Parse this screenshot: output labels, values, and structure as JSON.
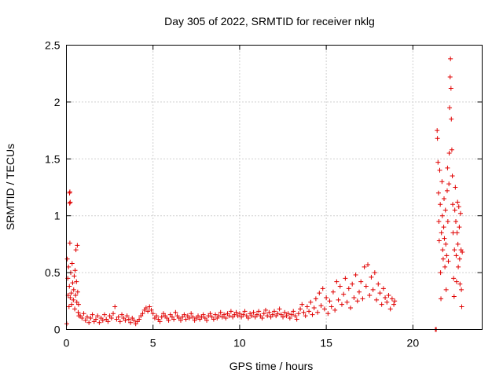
{
  "chart_data": {
    "type": "scatter",
    "title": "Day 305 of 2022, SRMTID for receiver nklg",
    "xlabel": "GPS time / hours",
    "ylabel": "SRMTID / TECUs",
    "xlim": [
      0,
      24
    ],
    "ylim": [
      0,
      2.5
    ],
    "xticks": [
      0,
      5,
      10,
      15,
      20
    ],
    "yticks": [
      0,
      0.5,
      1,
      1.5,
      2,
      2.5
    ],
    "xtick_labels": [
      "0",
      "5",
      "10",
      "15",
      "20"
    ],
    "ytick_labels": [
      "0",
      "0.5",
      "1",
      "1.5",
      "2",
      "2.5"
    ],
    "grid": true,
    "marker": "plus",
    "color": "#e00000",
    "series": [
      {
        "name": "nklg",
        "points": [
          [
            0.02,
            0.05
          ],
          [
            0.05,
            0.62
          ],
          [
            0.08,
            0.45
          ],
          [
            0.1,
            0.3
          ],
          [
            0.12,
            0.55
          ],
          [
            0.15,
            0.2
          ],
          [
            0.17,
            0.38
          ],
          [
            0.2,
            0.76
          ],
          [
            0.22,
            0.28
          ],
          [
            0.25,
            0.5
          ],
          [
            0.28,
            0.32
          ],
          [
            0.3,
            0.22
          ],
          [
            0.33,
            0.58
          ],
          [
            0.36,
            0.41
          ],
          [
            0.4,
            0.26
          ],
          [
            0.42,
            0.35
          ],
          [
            0.45,
            0.47
          ],
          [
            0.48,
            0.18
          ],
          [
            0.5,
            0.52
          ],
          [
            0.53,
            0.3
          ],
          [
            0.55,
            0.7
          ],
          [
            0.58,
            0.42
          ],
          [
            0.6,
            0.24
          ],
          [
            0.63,
            0.74
          ],
          [
            0.65,
            0.33
          ],
          [
            0.68,
            0.15
          ],
          [
            0.7,
            0.22
          ],
          [
            0.72,
            0.12
          ],
          [
            0.18,
            1.2
          ],
          [
            0.2,
            1.21
          ],
          [
            0.22,
            1.12
          ],
          [
            0.19,
            1.11
          ],
          [
            0.8,
            0.12
          ],
          [
            0.9,
            0.1
          ],
          [
            1.0,
            0.14
          ],
          [
            1.1,
            0.08
          ],
          [
            1.2,
            0.11
          ],
          [
            1.3,
            0.06
          ],
          [
            1.4,
            0.1
          ],
          [
            1.5,
            0.13
          ],
          [
            1.6,
            0.07
          ],
          [
            1.7,
            0.09
          ],
          [
            1.8,
            0.12
          ],
          [
            1.9,
            0.06
          ],
          [
            2.0,
            0.1
          ],
          [
            2.1,
            0.08
          ],
          [
            2.2,
            0.13
          ],
          [
            2.3,
            0.09
          ],
          [
            2.4,
            0.07
          ],
          [
            2.5,
            0.12
          ],
          [
            2.6,
            0.1
          ],
          [
            2.7,
            0.14
          ],
          [
            2.8,
            0.2
          ],
          [
            2.9,
            0.09
          ],
          [
            3.0,
            0.11
          ],
          [
            3.1,
            0.07
          ],
          [
            3.2,
            0.13
          ],
          [
            3.3,
            0.1
          ],
          [
            3.4,
            0.08
          ],
          [
            3.5,
            0.12
          ],
          [
            3.6,
            0.09
          ],
          [
            3.7,
            0.06
          ],
          [
            3.8,
            0.1
          ],
          [
            3.9,
            0.08
          ],
          [
            4.0,
            0.05
          ],
          [
            4.1,
            0.07
          ],
          [
            4.2,
            0.09
          ],
          [
            4.3,
            0.12
          ],
          [
            4.4,
            0.14
          ],
          [
            4.5,
            0.17
          ],
          [
            4.6,
            0.19
          ],
          [
            4.7,
            0.16
          ],
          [
            4.8,
            0.2
          ],
          [
            4.9,
            0.17
          ],
          [
            5.0,
            0.14
          ],
          [
            5.1,
            0.1
          ],
          [
            5.2,
            0.12
          ],
          [
            5.3,
            0.09
          ],
          [
            5.4,
            0.07
          ],
          [
            5.5,
            0.11
          ],
          [
            5.6,
            0.14
          ],
          [
            5.7,
            0.12
          ],
          [
            5.8,
            0.1
          ],
          [
            5.9,
            0.08
          ],
          [
            6.0,
            0.13
          ],
          [
            6.1,
            0.11
          ],
          [
            6.2,
            0.09
          ],
          [
            6.3,
            0.15
          ],
          [
            6.4,
            0.12
          ],
          [
            6.5,
            0.1
          ],
          [
            6.6,
            0.08
          ],
          [
            6.7,
            0.11
          ],
          [
            6.8,
            0.13
          ],
          [
            6.9,
            0.09
          ],
          [
            7.0,
            0.12
          ],
          [
            7.1,
            0.1
          ],
          [
            7.2,
            0.14
          ],
          [
            7.3,
            0.11
          ],
          [
            7.4,
            0.08
          ],
          [
            7.5,
            0.1
          ],
          [
            7.6,
            0.12
          ],
          [
            7.7,
            0.09
          ],
          [
            7.8,
            0.11
          ],
          [
            7.9,
            0.13
          ],
          [
            8.0,
            0.1
          ],
          [
            8.1,
            0.08
          ],
          [
            8.2,
            0.12
          ],
          [
            8.3,
            0.14
          ],
          [
            8.4,
            0.11
          ],
          [
            8.5,
            0.09
          ],
          [
            8.6,
            0.13
          ],
          [
            8.7,
            0.1
          ],
          [
            8.8,
            0.12
          ],
          [
            8.9,
            0.15
          ],
          [
            9.0,
            0.11
          ],
          [
            9.1,
            0.13
          ],
          [
            9.2,
            0.1
          ],
          [
            9.3,
            0.14
          ],
          [
            9.4,
            0.12
          ],
          [
            9.5,
            0.16
          ],
          [
            9.6,
            0.11
          ],
          [
            9.7,
            0.13
          ],
          [
            9.8,
            0.15
          ],
          [
            9.9,
            0.12
          ],
          [
            10.0,
            0.14
          ],
          [
            10.1,
            0.11
          ],
          [
            10.2,
            0.13
          ],
          [
            10.3,
            0.16
          ],
          [
            10.4,
            0.12
          ],
          [
            10.5,
            0.1
          ],
          [
            10.6,
            0.14
          ],
          [
            10.7,
            0.12
          ],
          [
            10.8,
            0.15
          ],
          [
            10.9,
            0.11
          ],
          [
            11.0,
            0.13
          ],
          [
            11.1,
            0.16
          ],
          [
            11.2,
            0.12
          ],
          [
            11.3,
            0.1
          ],
          [
            11.4,
            0.14
          ],
          [
            11.5,
            0.17
          ],
          [
            11.6,
            0.12
          ],
          [
            11.7,
            0.15
          ],
          [
            11.8,
            0.11
          ],
          [
            11.9,
            0.13
          ],
          [
            12.0,
            0.16
          ],
          [
            12.1,
            0.12
          ],
          [
            12.2,
            0.14
          ],
          [
            12.3,
            0.18
          ],
          [
            12.4,
            0.13
          ],
          [
            12.5,
            0.11
          ],
          [
            12.6,
            0.15
          ],
          [
            12.7,
            0.12
          ],
          [
            12.8,
            0.14
          ],
          [
            12.9,
            0.1
          ],
          [
            13.0,
            0.13
          ],
          [
            13.1,
            0.16
          ],
          [
            13.2,
            0.12
          ],
          [
            13.3,
            0.09
          ],
          [
            13.4,
            0.14
          ],
          [
            13.5,
            0.18
          ],
          [
            13.6,
            0.22
          ],
          [
            13.7,
            0.15
          ],
          [
            13.8,
            0.12
          ],
          [
            13.9,
            0.2
          ],
          [
            14.0,
            0.16
          ],
          [
            14.1,
            0.24
          ],
          [
            14.2,
            0.13
          ],
          [
            14.3,
            0.19
          ],
          [
            14.4,
            0.27
          ],
          [
            14.5,
            0.15
          ],
          [
            14.6,
            0.32
          ],
          [
            14.7,
            0.21
          ],
          [
            14.8,
            0.36
          ],
          [
            14.9,
            0.18
          ],
          [
            15.0,
            0.28
          ],
          [
            15.1,
            0.14
          ],
          [
            15.2,
            0.25
          ],
          [
            15.3,
            0.2
          ],
          [
            15.4,
            0.33
          ],
          [
            15.5,
            0.17
          ],
          [
            15.6,
            0.42
          ],
          [
            15.7,
            0.26
          ],
          [
            15.8,
            0.38
          ],
          [
            15.9,
            0.22
          ],
          [
            16.0,
            0.31
          ],
          [
            16.1,
            0.45
          ],
          [
            16.2,
            0.24
          ],
          [
            16.3,
            0.36
          ],
          [
            16.4,
            0.19
          ],
          [
            16.5,
            0.4
          ],
          [
            16.6,
            0.28
          ],
          [
            16.7,
            0.48
          ],
          [
            16.8,
            0.25
          ],
          [
            16.9,
            0.33
          ],
          [
            17.0,
            0.42
          ],
          [
            17.1,
            0.27
          ],
          [
            17.2,
            0.55
          ],
          [
            17.3,
            0.38
          ],
          [
            17.4,
            0.57
          ],
          [
            17.5,
            0.3
          ],
          [
            17.6,
            0.46
          ],
          [
            17.7,
            0.35
          ],
          [
            17.8,
            0.5
          ],
          [
            17.9,
            0.26
          ],
          [
            18.0,
            0.4
          ],
          [
            18.1,
            0.32
          ],
          [
            18.2,
            0.22
          ],
          [
            18.3,
            0.36
          ],
          [
            18.4,
            0.28
          ],
          [
            18.5,
            0.24
          ],
          [
            18.6,
            0.3
          ],
          [
            18.7,
            0.18
          ],
          [
            18.8,
            0.27
          ],
          [
            18.9,
            0.22
          ],
          [
            18.95,
            0.25
          ],
          [
            21.3,
            0.0
          ],
          [
            21.35,
            0.0
          ],
          [
            21.4,
            1.75
          ],
          [
            21.42,
            1.68
          ],
          [
            21.45,
            1.47
          ],
          [
            21.48,
            1.2
          ],
          [
            21.5,
            0.95
          ],
          [
            21.52,
            0.78
          ],
          [
            21.55,
            1.4
          ],
          [
            21.58,
            1.1
          ],
          [
            21.6,
            0.5
          ],
          [
            21.62,
            0.27
          ],
          [
            21.65,
            0.85
          ],
          [
            21.68,
            1.3
          ],
          [
            21.7,
            1.0
          ],
          [
            21.72,
            0.7
          ],
          [
            21.75,
            0.62
          ],
          [
            21.78,
            0.9
          ],
          [
            21.8,
            1.15
          ],
          [
            21.82,
            0.8
          ],
          [
            21.85,
            0.55
          ],
          [
            21.88,
            1.05
          ],
          [
            21.9,
            0.75
          ],
          [
            21.92,
            0.35
          ],
          [
            21.95,
            0.65
          ],
          [
            21.98,
            1.22
          ],
          [
            22.0,
            1.42
          ],
          [
            22.02,
            0.95
          ],
          [
            22.05,
            0.6
          ],
          [
            22.08,
            1.28
          ],
          [
            22.1,
            1.55
          ],
          [
            22.12,
            1.95
          ],
          [
            22.15,
            2.22
          ],
          [
            22.17,
            2.38
          ],
          [
            22.2,
            2.12
          ],
          [
            22.22,
            1.85
          ],
          [
            22.25,
            1.58
          ],
          [
            22.28,
            1.35
          ],
          [
            22.3,
            1.1
          ],
          [
            22.32,
            0.85
          ],
          [
            22.35,
            0.45
          ],
          [
            22.38,
            0.29
          ],
          [
            22.4,
            0.7
          ],
          [
            22.42,
            1.05
          ],
          [
            22.45,
            1.25
          ],
          [
            22.48,
            0.95
          ],
          [
            22.5,
            0.65
          ],
          [
            22.52,
            0.42
          ],
          [
            22.55,
            0.85
          ],
          [
            22.58,
            1.12
          ],
          [
            22.6,
            0.75
          ],
          [
            22.62,
            0.55
          ],
          [
            22.65,
            1.08
          ],
          [
            22.68,
            0.9
          ],
          [
            22.7,
            0.62
          ],
          [
            22.72,
            0.4
          ],
          [
            22.75,
            1.02
          ],
          [
            22.78,
            0.7
          ],
          [
            22.8,
            0.35
          ],
          [
            22.82,
            0.2
          ],
          [
            22.85,
            0.68
          ]
        ]
      }
    ]
  }
}
